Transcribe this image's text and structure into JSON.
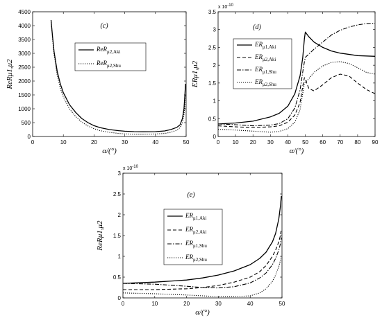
{
  "chart_data": [
    {
      "id": "c",
      "type": "line",
      "panel_label": "(c)",
      "xlabel": "α/(°)",
      "ylabel": "ReRμ1,μ2",
      "xlim": [
        0,
        50
      ],
      "ylim": [
        0,
        4500
      ],
      "xticks": [
        0,
        10,
        20,
        30,
        40,
        50
      ],
      "yticks": [
        0,
        500,
        1000,
        1500,
        2000,
        2500,
        3000,
        3500,
        4000,
        4500
      ],
      "ytick_labels": [
        "0",
        "500",
        "1000",
        "1500",
        "2000",
        "2500",
        "3000",
        "3500",
        "4000",
        "4500"
      ],
      "exponent_label": "",
      "legend": {
        "placement": "upper-center",
        "entries": [
          {
            "main": "ReR",
            "sub": "μ2,Aki",
            "dash": "solid"
          },
          {
            "main": "ReR",
            "sub": "μ2,Shu",
            "dash": "dotted"
          }
        ]
      },
      "series": [
        {
          "dash": "solid",
          "points": [
            [
              6,
              4200
            ],
            [
              6.5,
              3600
            ],
            [
              7,
              3050
            ],
            [
              8,
              2350
            ],
            [
              9,
              1900
            ],
            [
              10,
              1580
            ],
            [
              12,
              1150
            ],
            [
              14,
              870
            ],
            [
              16,
              650
            ],
            [
              18,
              500
            ],
            [
              20,
              390
            ],
            [
              22,
              320
            ],
            [
              25,
              250
            ],
            [
              28,
              210
            ],
            [
              30,
              190
            ],
            [
              33,
              175
            ],
            [
              36,
              170
            ],
            [
              40,
              175
            ],
            [
              43,
              200
            ],
            [
              45,
              250
            ],
            [
              47,
              330
            ],
            [
              48,
              420
            ],
            [
              48.8,
              650
            ],
            [
              49.3,
              1000
            ],
            [
              49.6,
              1500
            ],
            [
              49.8,
              1900
            ]
          ]
        },
        {
          "dash": "dotted",
          "points": [
            [
              6,
              4200
            ],
            [
              6.5,
              3500
            ],
            [
              7,
              2950
            ],
            [
              8,
              2200
            ],
            [
              9,
              1750
            ],
            [
              10,
              1430
            ],
            [
              12,
              1000
            ],
            [
              14,
              720
            ],
            [
              16,
              520
            ],
            [
              18,
              380
            ],
            [
              20,
              280
            ],
            [
              22,
              210
            ],
            [
              25,
              150
            ],
            [
              28,
              110
            ],
            [
              30,
              95
            ],
            [
              33,
              80
            ],
            [
              36,
              80
            ],
            [
              40,
              90
            ],
            [
              43,
              110
            ],
            [
              45,
              150
            ],
            [
              47,
              230
            ],
            [
              48,
              320
            ],
            [
              48.8,
              500
            ],
            [
              49.3,
              800
            ],
            [
              49.6,
              1150
            ],
            [
              49.8,
              1500
            ]
          ]
        }
      ]
    },
    {
      "id": "d",
      "type": "line",
      "panel_label": "(d)",
      "xlabel": "α/(°)",
      "ylabel": "ERμ1,μ2",
      "xlim": [
        0,
        90
      ],
      "ylim": [
        0,
        3.5
      ],
      "xticks": [
        0,
        10,
        20,
        30,
        40,
        50,
        60,
        70,
        80,
        90
      ],
      "yticks": [
        0,
        0.5,
        1,
        1.5,
        2,
        2.5,
        3,
        3.5
      ],
      "ytick_labels": [
        "0",
        "0.5",
        "1",
        "1.5",
        "2",
        "2.5",
        "3",
        "3.5"
      ],
      "exponent_label": "x 10",
      "exponent_power": "-10",
      "legend": {
        "placement": "right",
        "entries": [
          {
            "main": "ER",
            "sub": "μ1,Aki",
            "dash": "solid"
          },
          {
            "main": "ER",
            "sub": "μ2,Aki",
            "dash": "dashed"
          },
          {
            "main": "ER",
            "sub": "μ1,Shu",
            "dash": "dashdot"
          },
          {
            "main": "ER",
            "sub": "μ2,Shu",
            "dash": "dotted"
          }
        ]
      },
      "series": [
        {
          "dash": "solid",
          "points": [
            [
              0,
              0.35
            ],
            [
              10,
              0.38
            ],
            [
              20,
              0.43
            ],
            [
              30,
              0.55
            ],
            [
              35,
              0.65
            ],
            [
              40,
              0.85
            ],
            [
              44,
              1.2
            ],
            [
              47,
              1.7
            ],
            [
              48.5,
              2.2
            ],
            [
              49.5,
              2.75
            ],
            [
              50,
              2.93
            ],
            [
              52,
              2.8
            ],
            [
              55,
              2.65
            ],
            [
              60,
              2.5
            ],
            [
              65,
              2.4
            ],
            [
              70,
              2.34
            ],
            [
              80,
              2.27
            ],
            [
              90,
              2.25
            ]
          ]
        },
        {
          "dash": "dashed",
          "points": [
            [
              0,
              0.3
            ],
            [
              10,
              0.27
            ],
            [
              20,
              0.25
            ],
            [
              30,
              0.27
            ],
            [
              35,
              0.3
            ],
            [
              40,
              0.4
            ],
            [
              44,
              0.6
            ],
            [
              47,
              0.95
            ],
            [
              48.5,
              1.4
            ],
            [
              49.5,
              1.65
            ],
            [
              50,
              1.6
            ],
            [
              52,
              1.35
            ],
            [
              55,
              1.28
            ],
            [
              60,
              1.45
            ],
            [
              65,
              1.65
            ],
            [
              70,
              1.75
            ],
            [
              75,
              1.7
            ],
            [
              80,
              1.5
            ],
            [
              85,
              1.32
            ],
            [
              90,
              1.2
            ]
          ]
        },
        {
          "dash": "dashdot",
          "points": [
            [
              0,
              0.35
            ],
            [
              10,
              0.33
            ],
            [
              20,
              0.3
            ],
            [
              30,
              0.32
            ],
            [
              35,
              0.36
            ],
            [
              40,
              0.5
            ],
            [
              44,
              0.8
            ],
            [
              47,
              1.3
            ],
            [
              48.5,
              1.8
            ],
            [
              49.5,
              2.1
            ],
            [
              50,
              2.22
            ],
            [
              55,
              2.45
            ],
            [
              60,
              2.65
            ],
            [
              65,
              2.85
            ],
            [
              70,
              2.98
            ],
            [
              75,
              3.07
            ],
            [
              80,
              3.13
            ],
            [
              85,
              3.17
            ],
            [
              90,
              3.18
            ]
          ]
        },
        {
          "dash": "dotted",
          "points": [
            [
              0,
              0.2
            ],
            [
              10,
              0.18
            ],
            [
              20,
              0.15
            ],
            [
              30,
              0.12
            ],
            [
              35,
              0.14
            ],
            [
              40,
              0.22
            ],
            [
              44,
              0.4
            ],
            [
              47,
              0.75
            ],
            [
              48.5,
              1.2
            ],
            [
              49.5,
              1.5
            ],
            [
              50,
              1.52
            ],
            [
              52,
              1.62
            ],
            [
              55,
              1.8
            ],
            [
              60,
              1.98
            ],
            [
              65,
              2.08
            ],
            [
              70,
              2.1
            ],
            [
              75,
              2.05
            ],
            [
              80,
              1.93
            ],
            [
              85,
              1.8
            ],
            [
              90,
              1.75
            ]
          ]
        }
      ]
    },
    {
      "id": "e",
      "type": "line",
      "panel_label": "(e)",
      "xlabel": "α/(°)",
      "ylabel": "ReRμ1,μ2",
      "xlim": [
        0,
        50
      ],
      "ylim": [
        0,
        3
      ],
      "xticks": [
        0,
        10,
        20,
        30,
        40,
        50
      ],
      "yticks": [
        0,
        0.5,
        1,
        1.5,
        2,
        2.5,
        3
      ],
      "ytick_labels": [
        "0",
        "0.5",
        "1",
        "1.5",
        "2",
        "2.5",
        "3"
      ],
      "exponent_label": "x 10",
      "exponent_power": "-10",
      "legend": {
        "placement": "right",
        "entries": [
          {
            "main": "ER",
            "sub": "μ1,Aki",
            "dash": "solid"
          },
          {
            "main": "ER",
            "sub": "μ2,Aki",
            "dash": "dashed"
          },
          {
            "main": "ER",
            "sub": "μ1,Shu",
            "dash": "dashdot"
          },
          {
            "main": "ER",
            "sub": "μ2,Shu",
            "dash": "dotted"
          }
        ]
      },
      "series": [
        {
          "dash": "solid",
          "points": [
            [
              0,
              0.35
            ],
            [
              10,
              0.38
            ],
            [
              20,
              0.43
            ],
            [
              25,
              0.48
            ],
            [
              30,
              0.55
            ],
            [
              35,
              0.65
            ],
            [
              40,
              0.8
            ],
            [
              43,
              0.95
            ],
            [
              45,
              1.1
            ],
            [
              47,
              1.35
            ],
            [
              48,
              1.55
            ],
            [
              49,
              1.9
            ],
            [
              49.5,
              2.2
            ],
            [
              49.8,
              2.45
            ]
          ]
        },
        {
          "dash": "dashed",
          "points": [
            [
              0,
              0.2
            ],
            [
              10,
              0.2
            ],
            [
              20,
              0.22
            ],
            [
              25,
              0.25
            ],
            [
              30,
              0.3
            ],
            [
              35,
              0.38
            ],
            [
              40,
              0.5
            ],
            [
              43,
              0.63
            ],
            [
              45,
              0.78
            ],
            [
              47,
              1.0
            ],
            [
              48,
              1.15
            ],
            [
              49,
              1.35
            ],
            [
              49.5,
              1.5
            ],
            [
              49.8,
              1.65
            ]
          ]
        },
        {
          "dash": "dashdot",
          "points": [
            [
              0,
              0.35
            ],
            [
              10,
              0.33
            ],
            [
              20,
              0.28
            ],
            [
              25,
              0.25
            ],
            [
              30,
              0.24
            ],
            [
              35,
              0.27
            ],
            [
              40,
              0.36
            ],
            [
              43,
              0.48
            ],
            [
              45,
              0.6
            ],
            [
              47,
              0.8
            ],
            [
              48,
              0.95
            ],
            [
              49,
              1.15
            ],
            [
              49.5,
              1.3
            ],
            [
              49.8,
              1.45
            ]
          ]
        },
        {
          "dash": "dotted",
          "points": [
            [
              0,
              0.12
            ],
            [
              10,
              0.1
            ],
            [
              20,
              0.07
            ],
            [
              25,
              0.05
            ],
            [
              30,
              0.03
            ],
            [
              35,
              0.03
            ],
            [
              40,
              0.05
            ],
            [
              43,
              0.12
            ],
            [
              45,
              0.22
            ],
            [
              47,
              0.4
            ],
            [
              48,
              0.55
            ],
            [
              49,
              0.75
            ],
            [
              49.5,
              0.9
            ],
            [
              49.8,
              1.0
            ]
          ]
        }
      ]
    }
  ]
}
